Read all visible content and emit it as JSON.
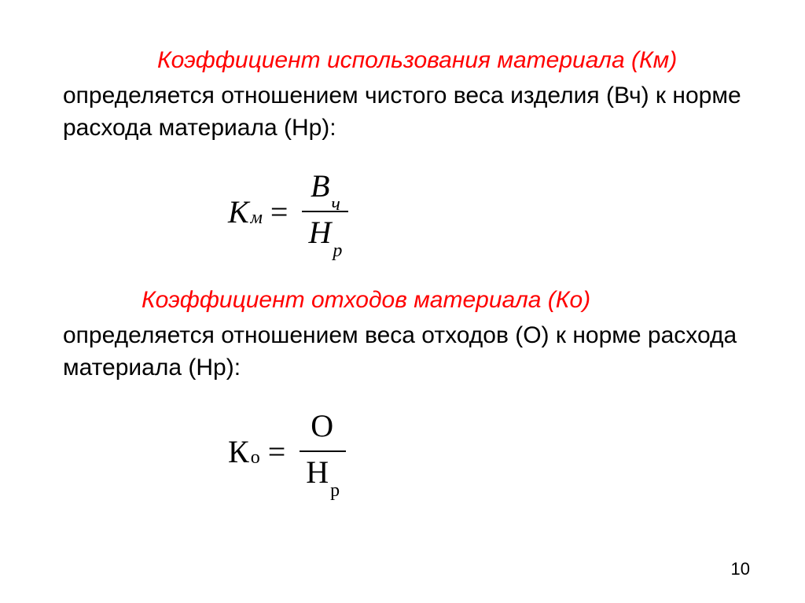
{
  "section1": {
    "heading": "Коэффициент использования материала (Км)",
    "body": "определяется отношением чистого веса изделия (Вч) к норме расхода материала (Нр):",
    "formula": {
      "lhs_base": "К",
      "lhs_sub": "м",
      "eq": "=",
      "num_base": "В",
      "num_sub": "ч",
      "den_base": "Н",
      "den_sub": "р"
    }
  },
  "section2": {
    "heading": "Коэффициент отходов материала (Ко)",
    "body": "определяется отношением веса отходов (О) к норме расхода материала (Нр):",
    "formula": {
      "lhs_base": "К",
      "lhs_sub": "о",
      "eq": "=",
      "num_base": "О",
      "num_sub": "",
      "den_base": "Н",
      "den_sub": "р"
    }
  },
  "page_number": "10",
  "colors": {
    "heading": "#ff0000",
    "body": "#000000",
    "background": "#ffffff"
  },
  "typography": {
    "heading_fontsize": 30,
    "body_fontsize": 30,
    "formula_fontsize": 40,
    "formula_font": "Times New Roman",
    "body_font": "Arial"
  }
}
